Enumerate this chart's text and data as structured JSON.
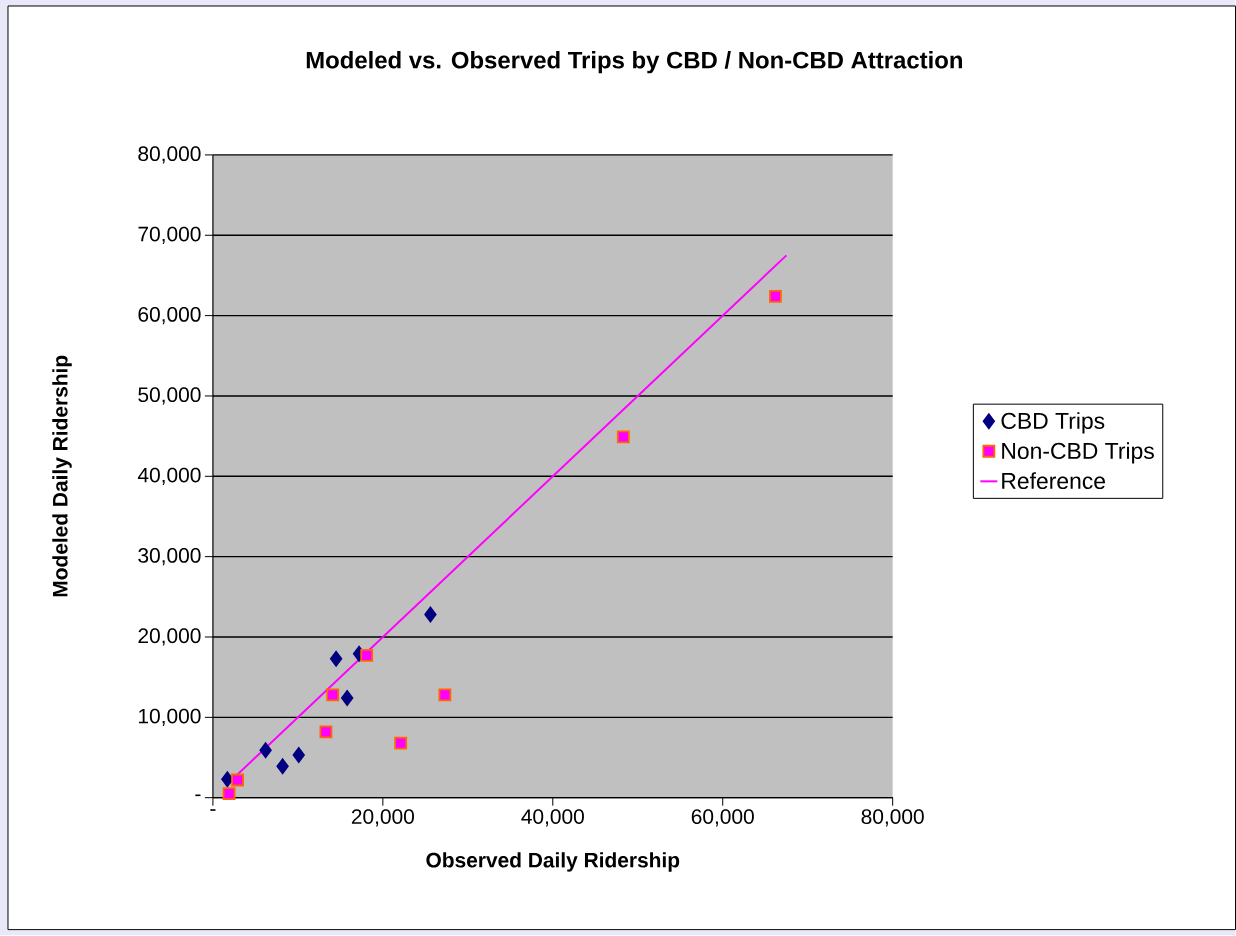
{
  "chart_data": {
    "type": "scatter",
    "title": "Modeled vs. Observed Trips by CBD / Non-CBD Attraction",
    "xlabel": "Observed Daily Ridership",
    "ylabel": "Modeled Daily Ridership",
    "xlim": [
      0,
      80000
    ],
    "ylim": [
      0,
      80000
    ],
    "xticks": [
      {
        "value": 0,
        "label": "-"
      },
      {
        "value": 20000,
        "label": "20,000"
      },
      {
        "value": 40000,
        "label": "40,000"
      },
      {
        "value": 60000,
        "label": "60,000"
      },
      {
        "value": 80000,
        "label": "80,000"
      }
    ],
    "yticks": [
      {
        "value": 0,
        "label": "-"
      },
      {
        "value": 10000,
        "label": "10,000"
      },
      {
        "value": 20000,
        "label": "20,000"
      },
      {
        "value": 30000,
        "label": "30,000"
      },
      {
        "value": 40000,
        "label": "40,000"
      },
      {
        "value": 50000,
        "label": "50,000"
      },
      {
        "value": 60000,
        "label": "60,000"
      },
      {
        "value": 70000,
        "label": "70,000"
      },
      {
        "value": 80000,
        "label": "80,000"
      }
    ],
    "grid": "y",
    "legend": "right",
    "series": [
      {
        "name": "CBD Trips",
        "marker": "diamond",
        "color": "#000080",
        "x": [
          1700,
          6200,
          8200,
          10100,
          14500,
          17200,
          15800,
          25600
        ],
        "values": [
          2300,
          5900,
          3900,
          5300,
          17300,
          17900,
          12400,
          22800
        ]
      },
      {
        "name": "Non-CBD Trips",
        "marker": "square",
        "color": "#ff00ff",
        "x": [
          1900,
          2900,
          14100,
          18100,
          13300,
          22100,
          27300,
          48300,
          66200
        ],
        "values": [
          500,
          2200,
          12800,
          17700,
          8200,
          6800,
          12800,
          44900,
          62400
        ]
      },
      {
        "name": "Reference",
        "type": "line",
        "marker": "none",
        "color": "#ff00ff",
        "x": [
          1500,
          67500
        ],
        "values": [
          1500,
          67500
        ]
      }
    ]
  }
}
